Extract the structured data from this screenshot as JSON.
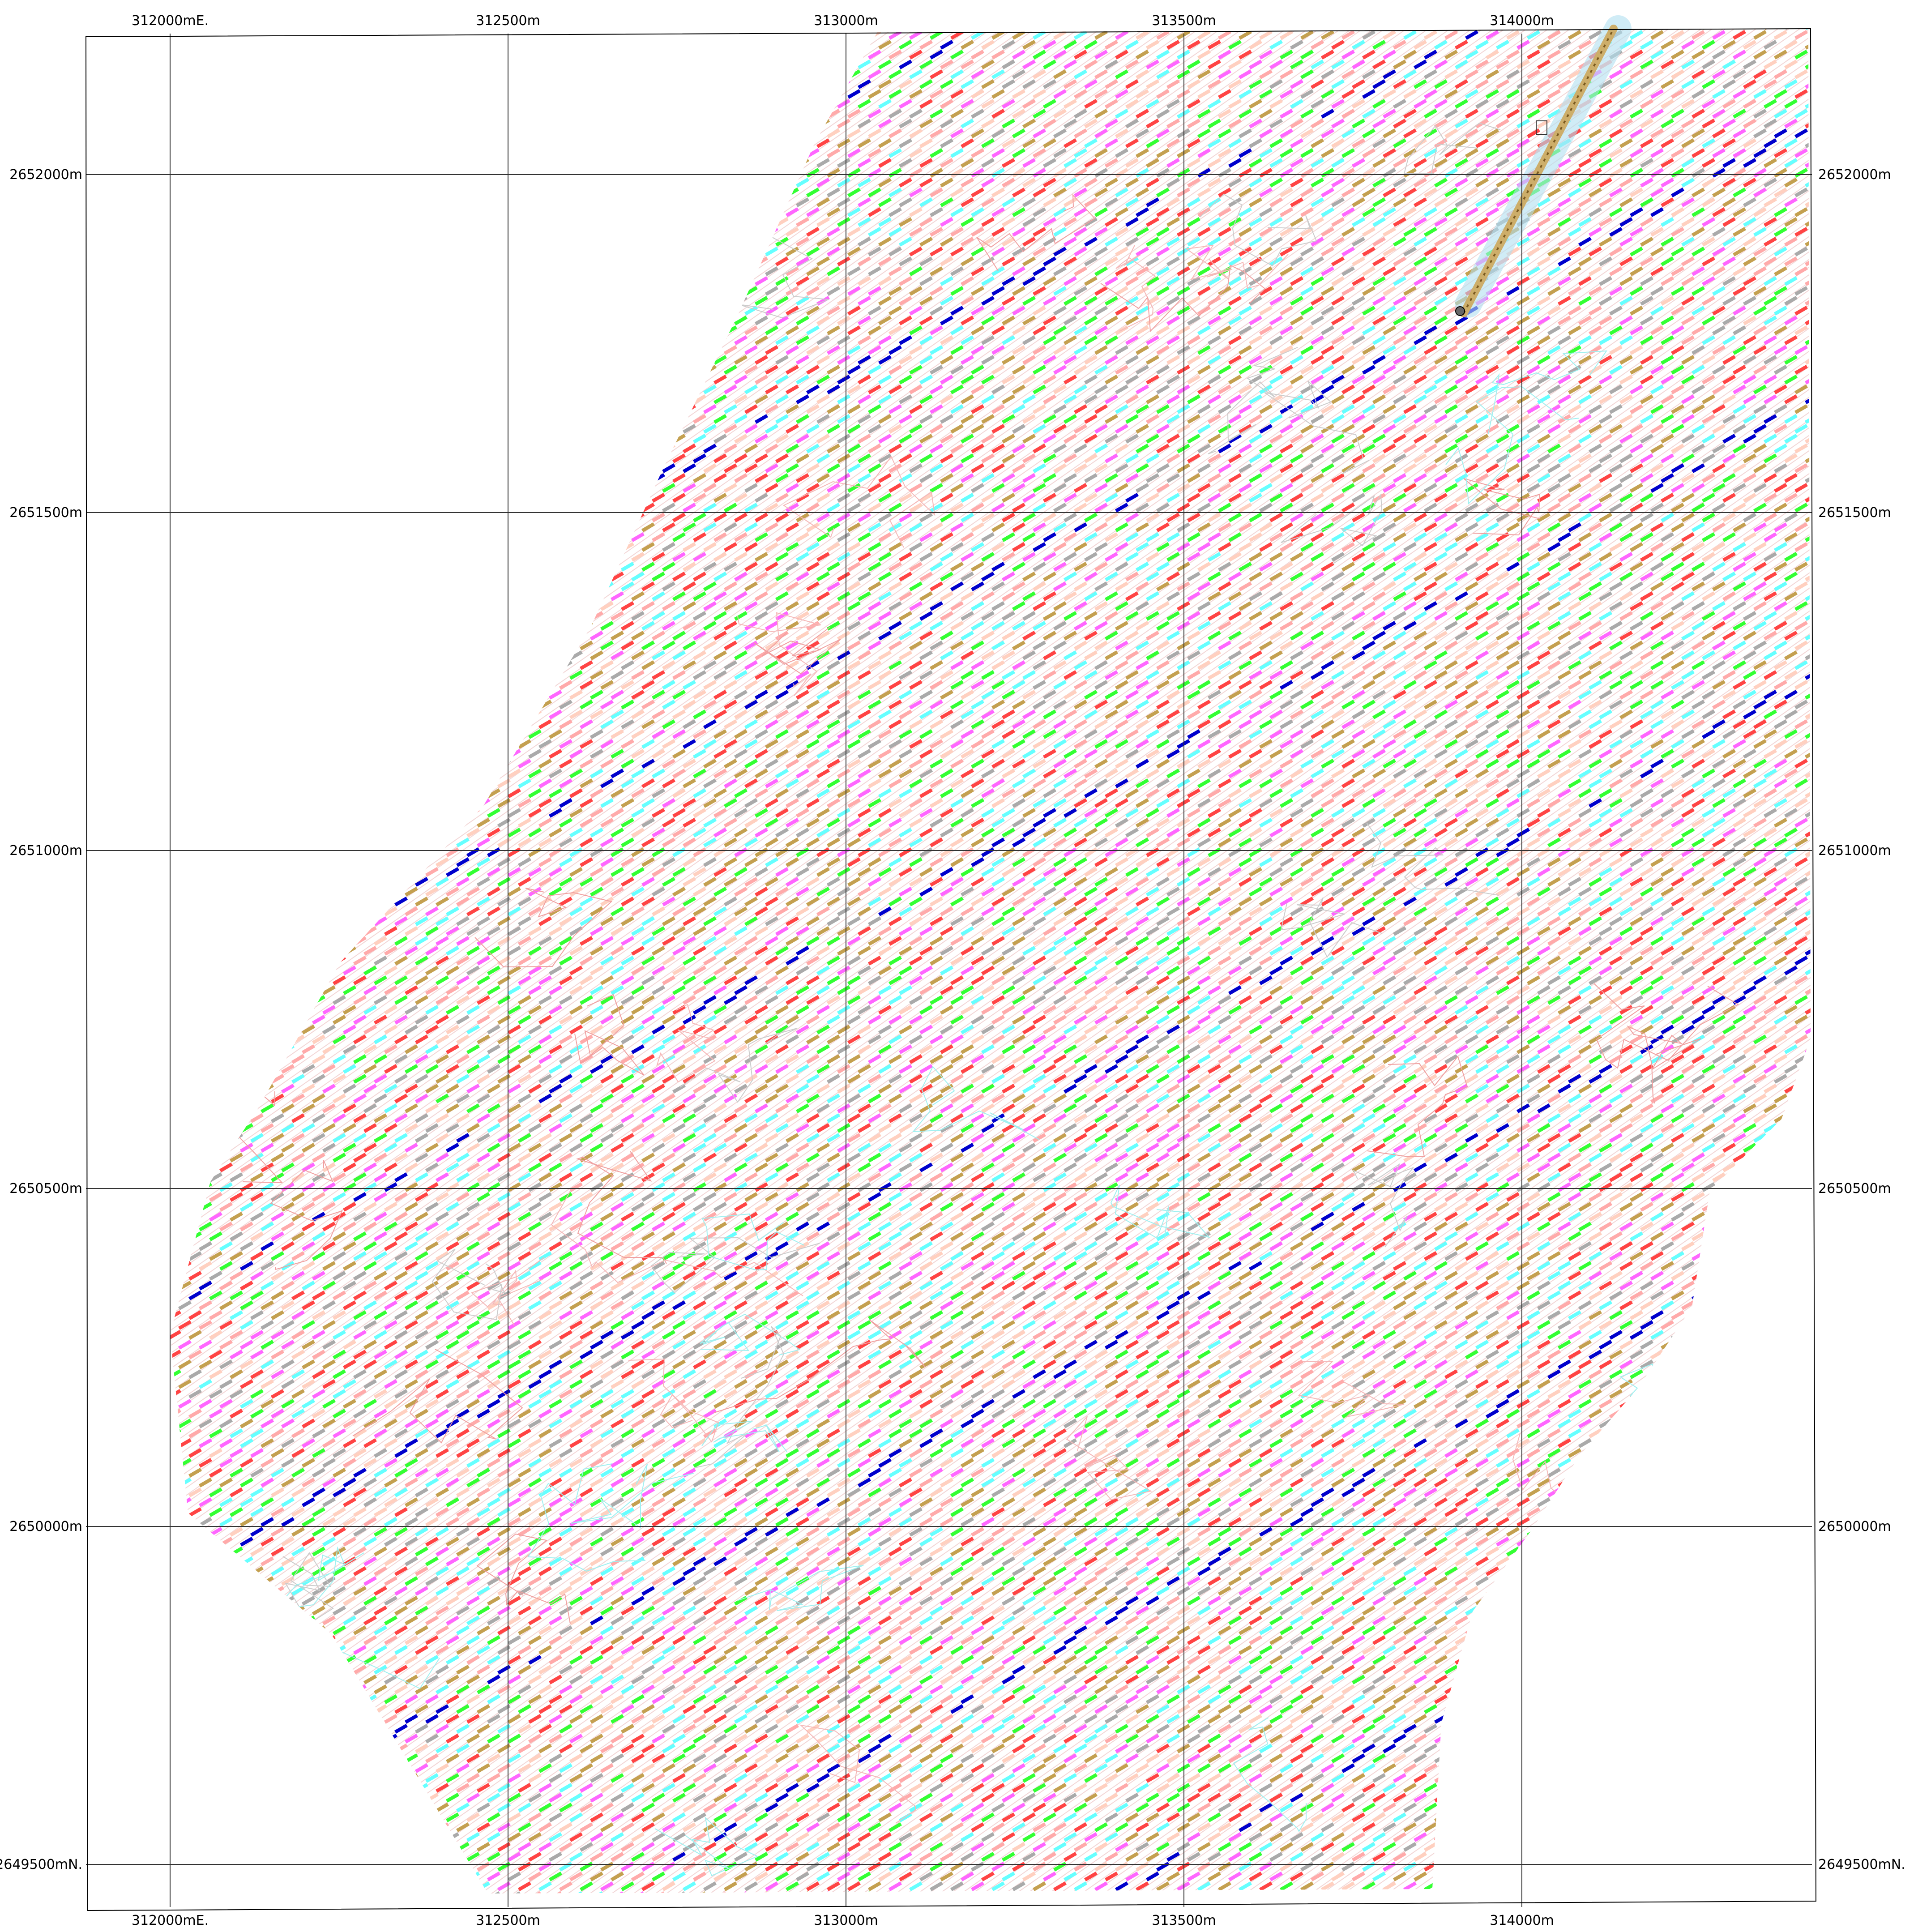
{
  "map": {
    "easting_labels_top": [
      "312000mE.",
      "312500m",
      "313000m",
      "313500m",
      "314000m"
    ],
    "easting_labels_bottom": [
      "312000mE.",
      "312500m",
      "313000m",
      "313500m",
      "314000m"
    ],
    "northing_labels_left": [
      "2652000m",
      "2651500m",
      "2651000m",
      "2650500m",
      "2650000m",
      "2649500mN."
    ],
    "northing_labels_right": [
      "2652000m",
      "2651500m",
      "2651000m",
      "2650500m",
      "2650000m",
      "2649500mN."
    ],
    "eastings": [
      312000,
      312500,
      313000,
      313500,
      314000
    ],
    "northings": [
      2652000,
      2651500,
      2651000,
      2650500,
      2650000,
      2649500
    ],
    "survey_label_colors": [
      "#0000dd",
      "#ff66ff",
      "#33ff33",
      "#ff4444",
      "#c4a050",
      "#66ffff",
      "#ffaaaa",
      "#aaaaaa",
      "#ffd0c0"
    ],
    "highlight_color": "#0000cc",
    "track_color": "#cdae6a",
    "grid_color": "#333333",
    "label_color": "#000000"
  }
}
